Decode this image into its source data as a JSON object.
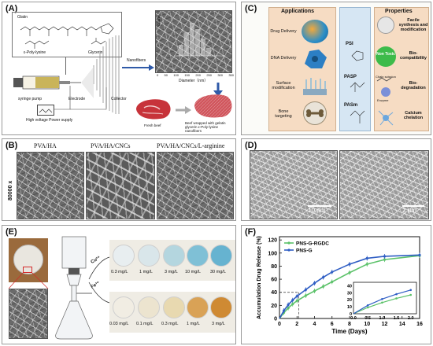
{
  "panels": {
    "a": {
      "label": "(A)",
      "molecule_labels": [
        "Glatin",
        "ε-Poly-lysine",
        "Glycerin"
      ],
      "syringe_pump": "syringe pump",
      "electrode": "Electrode",
      "collector": "Collector",
      "nanofibers": "Nanofibers",
      "hv_supply": "High voltage Power supply",
      "fresh_beef": "Fresh beef",
      "wrapped_beef": "Beef wrapped with gelatin glycerin ε-Poly-lysine nanofibers",
      "histogram_ylabel": "Counts",
      "histogram_xlabel": "Diameter（nm）",
      "histogram_ticks": [
        "0",
        "50",
        "100",
        "150",
        "200",
        "250",
        "300",
        "350"
      ]
    },
    "b": {
      "label": "(B)",
      "columns": [
        "PVA/HA",
        "PVA/HA/CNCs",
        "PVA/HA/CNCs/L-arginine"
      ],
      "magnification": "80000 x"
    },
    "c": {
      "label": "(C)",
      "applications_title": "Applications",
      "properties_title": "Properties",
      "applications": [
        "Drug Delivery",
        "DNA Delivery",
        "Surface modification",
        "Bone targeting"
      ],
      "polymers": [
        "PSI",
        "PASP",
        "PASm"
      ],
      "properties": [
        "Facile synthesis and modification",
        "Bio-compatibility",
        "Bio-degradation",
        "Calcium chelation"
      ],
      "non_toxic": "Non Toxic",
      "enzyme": "Enzyme",
      "chain_scission": "Chain scission"
    },
    "d": {
      "label": "(D)",
      "scale_left": "10 μm",
      "scale_right": "2 μm"
    },
    "e": {
      "label": "(E)",
      "ion_top": "Cu²⁺",
      "ion_bottom": "Fe³⁺",
      "top_row": [
        "0.3 mg/L",
        "1 mg/L",
        "3 mg/L",
        "10 mg/L",
        "30 mg/L"
      ],
      "bottom_row": [
        "0.03 mg/L",
        "0.1 mg/L",
        "0.3 mg/L",
        "1 mg/L",
        "3 mg/L"
      ],
      "top_colors": [
        "#e8eef0",
        "#d9e6ea",
        "#b4d6df",
        "#7fc0d6",
        "#66b3d0"
      ],
      "bottom_colors": [
        "#f1ede3",
        "#ece4cf",
        "#e8d9b0",
        "#d9a256",
        "#cf8a33"
      ]
    },
    "f": {
      "label": "(F)"
    }
  },
  "chart_data": {
    "type": "line",
    "xlabel": "Time (Days)",
    "ylabel": "Accumulation Drug Release (%)",
    "xlim": [
      0,
      16
    ],
    "ylim": [
      0,
      125
    ],
    "xticks": [
      0,
      2,
      4,
      6,
      8,
      10,
      12,
      14,
      16
    ],
    "yticks": [
      0,
      20,
      40,
      60,
      80,
      100,
      120
    ],
    "legend_position": "top-left",
    "series": [
      {
        "name": "PNS-G-RGDC",
        "color": "#5cc26a",
        "x": [
          0,
          0.5,
          1,
          1.5,
          2,
          3,
          4,
          5,
          6,
          8,
          10,
          12,
          16
        ],
        "y": [
          0,
          9,
          16,
          22,
          27,
          35,
          42,
          49,
          56,
          70,
          83,
          90,
          96
        ]
      },
      {
        "name": "PNS-G",
        "color": "#2f5ec4",
        "x": [
          0,
          0.5,
          1,
          1.5,
          2,
          3,
          4,
          5,
          6,
          8,
          10,
          12,
          16
        ],
        "y": [
          0,
          12,
          21,
          28,
          34,
          44,
          54,
          63,
          71,
          83,
          92,
          95,
          97
        ]
      }
    ],
    "inset": {
      "xlim": [
        0,
        2.2
      ],
      "ylim": [
        0,
        45
      ],
      "xticks": [
        "0.0",
        "0.5",
        "1.0",
        "1.5",
        "2.0"
      ],
      "yticks": [
        "0",
        "10",
        "20",
        "30",
        "40"
      ]
    }
  }
}
